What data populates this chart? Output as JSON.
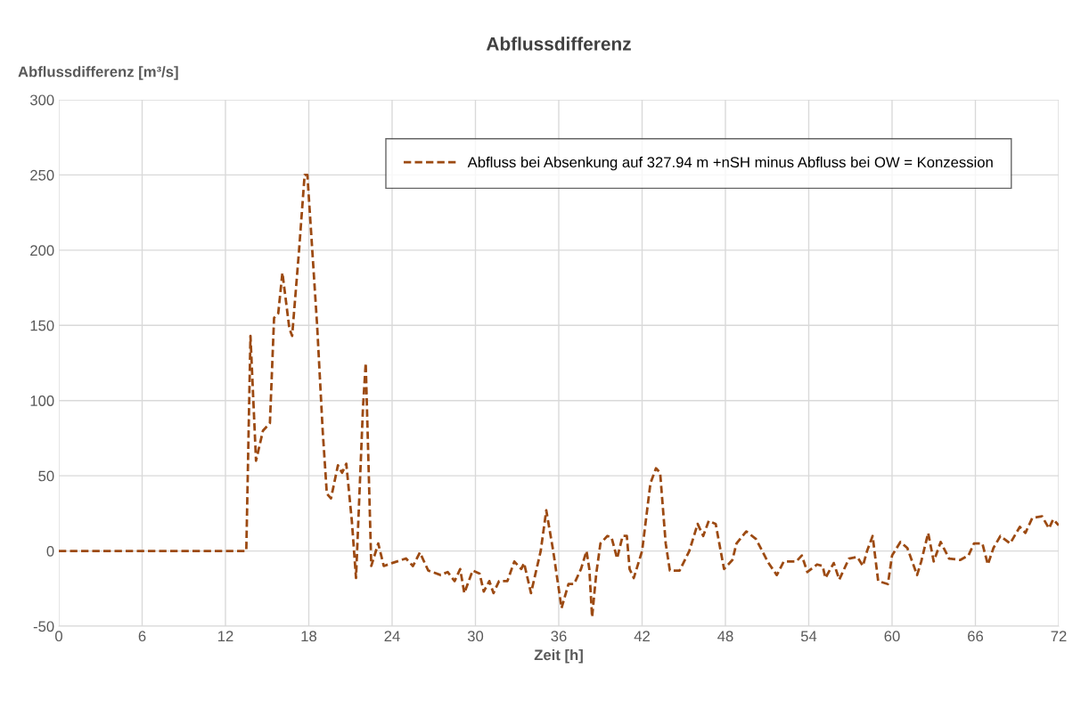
{
  "chart_data": {
    "type": "line",
    "title": "Abflussdifferenz",
    "ylabel": "Abflussdifferenz [m³/s]",
    "xlabel": "Zeit [h]",
    "xlim": [
      0,
      72
    ],
    "xticks": [
      0,
      6,
      12,
      18,
      24,
      30,
      36,
      42,
      48,
      54,
      60,
      66,
      72
    ],
    "ylim": [
      -50,
      300
    ],
    "yticks": [
      -50,
      0,
      50,
      100,
      150,
      200,
      250,
      300
    ],
    "grid": true,
    "legend": "top right",
    "line_style": "dashed",
    "marker": "none",
    "series": [
      {
        "name": "Abfluss bei Absenkung auf 327.94 m +nSH minus Abfluss bei OW = Konzession",
        "color": "#9c4a12",
        "x": [
          0,
          13.5,
          13.8,
          14.2,
          14.7,
          15.2,
          15.5,
          15.8,
          16.1,
          16.6,
          16.8,
          17.3,
          17.7,
          17.9,
          18.6,
          19.0,
          19.3,
          19.6,
          20.1,
          20.4,
          20.7,
          21.1,
          21.4,
          21.9,
          22.1,
          22.5,
          23.0,
          23.4,
          24.0,
          25.0,
          25.5,
          26.0,
          26.6,
          27.5,
          28.0,
          28.5,
          28.9,
          29.2,
          29.8,
          30.3,
          30.6,
          31.0,
          31.3,
          31.7,
          32.3,
          32.8,
          33.3,
          33.5,
          34.0,
          34.7,
          35.1,
          35.6,
          36.2,
          36.7,
          37.1,
          37.6,
          38.0,
          38.2,
          38.4,
          38.7,
          39.0,
          39.5,
          39.8,
          40.2,
          40.6,
          40.9,
          41.1,
          41.4,
          42.0,
          42.6,
          43.0,
          43.3,
          43.7,
          44.0,
          44.7,
          45.4,
          46.0,
          46.4,
          46.8,
          47.3,
          47.9,
          48.5,
          48.8,
          49.5,
          50.2,
          51.1,
          51.7,
          52.2,
          53.1,
          53.5,
          53.9,
          54.6,
          55.0,
          55.2,
          55.8,
          56.2,
          56.9,
          57.5,
          57.9,
          58.2,
          58.6,
          59.0,
          59.7,
          60.0,
          60.6,
          61.1,
          61.8,
          62.1,
          62.6,
          63.0,
          63.5,
          64.1,
          64.9,
          65.5,
          65.9,
          66.5,
          66.9,
          67.3,
          67.8,
          68.5,
          69.2,
          69.6,
          70.1,
          70.8,
          71.3,
          71.6,
          72.0
        ],
        "values": [
          0,
          0,
          143,
          60,
          80,
          85,
          155,
          158,
          185,
          148,
          143,
          200,
          250,
          250,
          150,
          80,
          38,
          35,
          57,
          52,
          58,
          20,
          -18,
          95,
          125,
          -10,
          5,
          -10,
          -8,
          -5,
          -10,
          -1,
          -13,
          -16,
          -14,
          -20,
          -12,
          -28,
          -13,
          -15,
          -27,
          -20,
          -28,
          -20,
          -20,
          -7,
          -12,
          -8,
          -28,
          0,
          27,
          0,
          -38,
          -22,
          -22,
          -12,
          0,
          -12,
          -44,
          -15,
          5,
          10,
          9,
          -5,
          10,
          10,
          -12,
          -18,
          0,
          45,
          55,
          52,
          5,
          -13,
          -13,
          0,
          18,
          10,
          20,
          18,
          -12,
          -6,
          5,
          13,
          8,
          -8,
          -16,
          -7,
          -7,
          -3,
          -14,
          -9,
          -10,
          -18,
          -8,
          -19,
          -5,
          -4,
          -10,
          0,
          10,
          -20,
          -22,
          -3,
          6,
          2,
          -16,
          -7,
          12,
          -7,
          6,
          -5,
          -6,
          -3,
          5,
          5,
          -9,
          2,
          10,
          5,
          16,
          12,
          22,
          23,
          15,
          21,
          17
        ]
      }
    ]
  }
}
